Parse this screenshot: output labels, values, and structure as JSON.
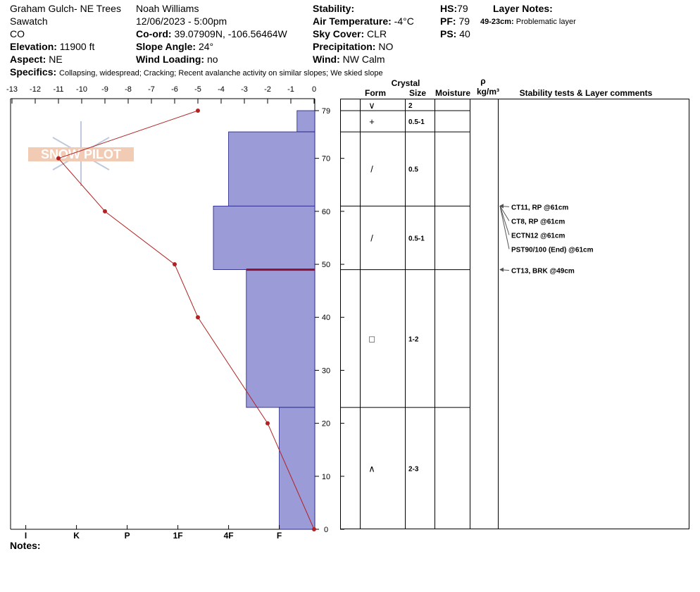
{
  "header": {
    "site": "Graham Gulch- NE Trees",
    "range": "Sawatch",
    "state": "CO",
    "elevation": {
      "label": "Elevation:",
      "value": "11900 ft"
    },
    "aspect": {
      "label": "Aspect:",
      "value": "NE"
    },
    "observer": "Noah Williams",
    "datetime": "12/06/2023 - 5:00pm",
    "coord": {
      "label": "Co-ord:",
      "value": "39.07909N, -106.56464W"
    },
    "slope": {
      "label": "Slope Angle:",
      "value": "24°"
    },
    "wind_loading": {
      "label": "Wind Loading:",
      "value": "no"
    },
    "stability": {
      "label": "Stability:"
    },
    "air_temp": {
      "label": "Air Temperature:",
      "value": "-4°C"
    },
    "sky": {
      "label": "Sky Cover:",
      "value": "CLR"
    },
    "precip": {
      "label": "Precipitation:",
      "value": "NO"
    },
    "wind": {
      "label": "Wind:",
      "value": "NW Calm"
    },
    "hs": {
      "label": "HS:",
      "value": "79"
    },
    "pf": {
      "label": "PF:",
      "value": "79"
    },
    "ps": {
      "label": "PS:",
      "value": "40"
    },
    "layer_notes": {
      "label": "Layer Notes:",
      "range": "49-23cm:",
      "note": "Problematic layer"
    },
    "specifics": {
      "label": "Specifics:",
      "value": "Collapsing, widespread;  Cracking;  Recent avalanche activity on similar slopes; We skied slope"
    }
  },
  "logo": "SNOW PILOT",
  "chart_data": {
    "type": "snow-profile",
    "ylim": [
      0,
      79
    ],
    "yticks": [
      0,
      10,
      20,
      30,
      40,
      50,
      60,
      70,
      79
    ],
    "temperature": {
      "depths": [
        79,
        70,
        60,
        50,
        40,
        20,
        0
      ],
      "values": [
        -5,
        -11,
        -9,
        -6,
        -5,
        -2,
        0
      ],
      "xlim": [
        -13,
        0
      ],
      "xticks": [
        -13,
        -12,
        -11,
        -10,
        -9,
        -8,
        -7,
        -6,
        -5,
        -4,
        -3,
        -2,
        -1,
        0
      ],
      "color": "#b22222"
    },
    "hardness": {
      "xlim": [
        6.3,
        0.3
      ],
      "xticks": [
        {
          "value": 6,
          "label": "I"
        },
        {
          "value": 5,
          "label": "K"
        },
        {
          "value": 4,
          "label": "P"
        },
        {
          "value": 3,
          "label": "1F"
        },
        {
          "value": 2,
          "label": "4F"
        },
        {
          "value": 1,
          "label": "F"
        }
      ],
      "color": "#9b9bd8",
      "edge_color": "#1a1a80"
    },
    "layers": [
      {
        "top": 79,
        "bottom": 75,
        "hardness": 0.65,
        "form": "+",
        "size": "0.5-1"
      },
      {
        "top": 75,
        "bottom": 61,
        "hardness": 2,
        "form": "/",
        "size": "0.5"
      },
      {
        "top": 61,
        "bottom": 49,
        "hardness": 2.3,
        "form": "/",
        "size": "0.5-1"
      },
      {
        "top": 49,
        "bottom": 23,
        "hardness": 1.65,
        "form": "□",
        "size": "1-2",
        "problem": true
      },
      {
        "top": 23,
        "bottom": 0,
        "hardness": 1,
        "form": "∧",
        "size": "2-3"
      }
    ],
    "problem_color": "#8b1030"
  },
  "table": {
    "headers": {
      "crystal": "Crystal",
      "form": "Form",
      "size": "Size",
      "moisture": "Moisture",
      "density_symbol": "ρ",
      "density_unit": "kg/m³",
      "comments": "Stability tests & Layer comments"
    },
    "surface": {
      "form": "∨",
      "size": "2"
    }
  },
  "stability_tests": [
    {
      "text": "CT11, RP @61cm",
      "depth": 61
    },
    {
      "text": "CT8, RP @61cm",
      "depth": 61
    },
    {
      "text": "ECTN12 @61cm",
      "depth": 61
    },
    {
      "text": "PST90/100 (End) @61cm",
      "depth": 61
    },
    {
      "text": "CT13, BRK @49cm",
      "depth": 49
    }
  ],
  "notes_label": "Notes:"
}
